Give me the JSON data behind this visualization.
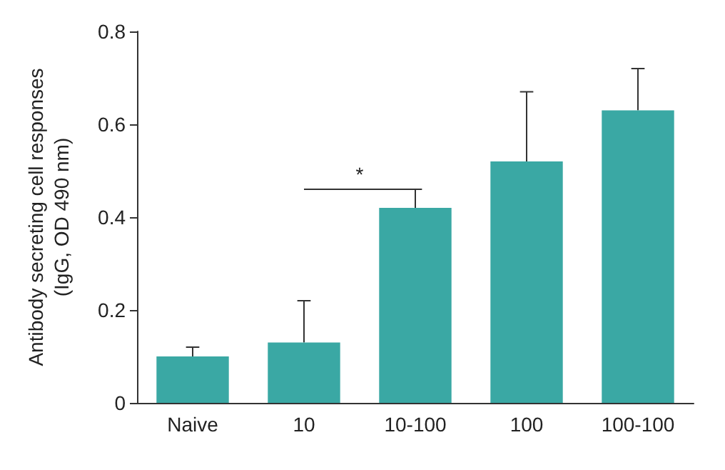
{
  "chart_data": {
    "type": "bar",
    "ylabel": "Antibody secreting cell responses\n(IgG, OD 490 nm)",
    "categories": [
      "Naive",
      "10",
      "10-100",
      "100",
      "100-100"
    ],
    "values": [
      0.1,
      0.13,
      0.42,
      0.52,
      0.63
    ],
    "errors": [
      [
        0.1,
        0.12
      ],
      [
        0.13,
        0.22
      ],
      [
        0.42,
        0.46
      ],
      [
        0.52,
        0.67
      ],
      [
        0.63,
        0.72
      ]
    ],
    "color": "#3aa8a4",
    "ylim": [
      0,
      0.8
    ],
    "yticks": [
      0,
      0.2,
      0.4,
      0.6,
      0.8
    ],
    "grid": false,
    "annotations": [
      "*"
    ]
  }
}
